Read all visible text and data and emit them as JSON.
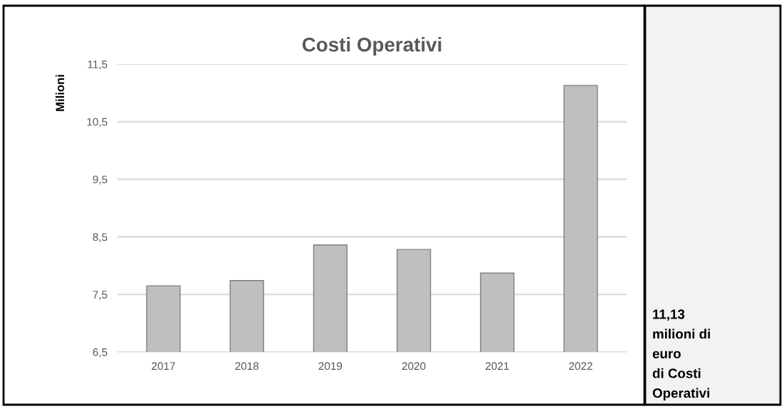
{
  "chart_data": {
    "type": "bar",
    "title": "Costi Operativi",
    "ylabel": "Milioni",
    "categories": [
      "2017",
      "2018",
      "2019",
      "2020",
      "2021",
      "2022"
    ],
    "values": [
      7.65,
      7.74,
      8.36,
      8.28,
      7.87,
      11.13
    ],
    "color": "#bfbfbf",
    "ylim": [
      6.5,
      11.5
    ],
    "yticks": [
      {
        "value": 6.5,
        "label": "6,5"
      },
      {
        "value": 7.5,
        "label": "7,5"
      },
      {
        "value": 8.5,
        "label": "8,5"
      },
      {
        "value": 9.5,
        "label": "9,5"
      },
      {
        "value": 10.5,
        "label": "10,5"
      },
      {
        "value": 11.5,
        "label": "11,5"
      }
    ],
    "grid": "y",
    "annotations": [
      "11,13\nmilioni di\neuro\ndi Costi\nOperativi"
    ]
  }
}
